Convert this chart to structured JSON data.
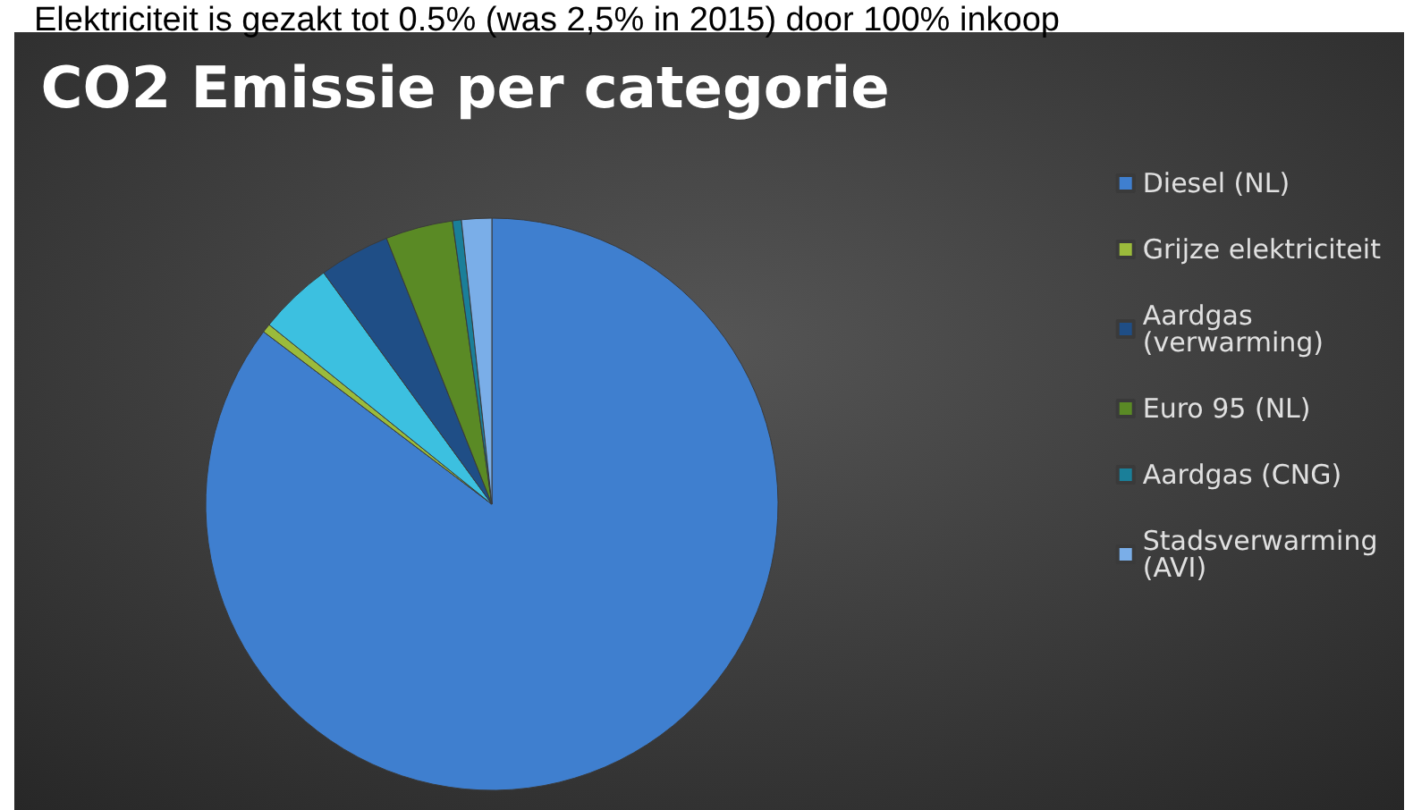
{
  "chart_data": {
    "type": "pie",
    "title": "CO2 Emissie per categorie",
    "annotations": [
      "Elektriciteit is gezakt tot 0.5% (was 2,5% in 2015) door 100% inkoop"
    ],
    "categories": [
      "Diesel (NL)",
      "Grijze elektriciteit",
      null,
      "Aardgas (verwarming)",
      "Euro 95 (NL)",
      "Aardgas (CNG)",
      "Stadsverwarming (AVI)"
    ],
    "values": [
      85.3,
      0.5,
      4.2,
      4.0,
      3.8,
      0.5,
      1.7
    ],
    "colors": [
      "#3f7fcf",
      "#9bbb3b",
      "#3cc0e0",
      "#1f4e86",
      "#5a8a25",
      "#1a7f99",
      "#7aaee8"
    ],
    "legend": "right"
  }
}
